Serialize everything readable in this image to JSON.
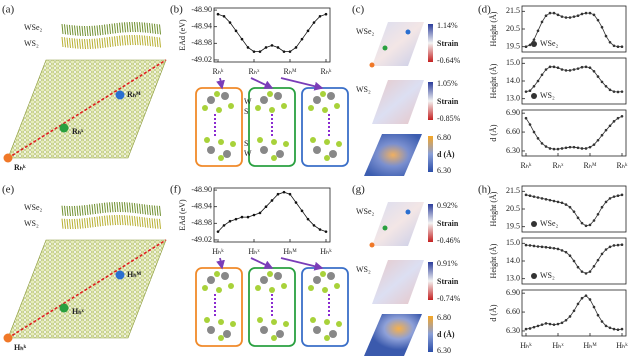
{
  "panels": {
    "labels": [
      "(a)",
      "(b)",
      "(c)",
      "(d)",
      "(e)",
      "(f)",
      "(g)",
      "(h)"
    ],
    "top": {
      "layers": [
        "WSe₂",
        "WS₂"
      ],
      "points": [
        "Rₕᴹ",
        "Rₕˣ",
        "Rₕᵏ"
      ],
      "stacking_atoms": [
        "W",
        "S",
        "S",
        "W"
      ],
      "maps": [
        {
          "layer": "WSe₂",
          "max": "1.14%",
          "quantity": "Strain",
          "min": "-0.64%"
        },
        {
          "layer": "WS₂",
          "max": "1.05%",
          "quantity": "Strain",
          "min": "-0.85%"
        },
        {
          "max": "6.80",
          "quantity": "d (Å)",
          "min": "6.30"
        }
      ]
    },
    "bottom": {
      "layers": [
        "WSe₂",
        "WS₂"
      ],
      "points": [
        "Hₕᴹ",
        "Hₕˣ",
        "Hₕᵏ"
      ],
      "maps": [
        {
          "layer": "WSe₂",
          "max": "0.92%",
          "quantity": "Strain",
          "min": "-0.46%"
        },
        {
          "layer": "WS₂",
          "max": "0.91%",
          "quantity": "Strain",
          "min": "-0.74%"
        },
        {
          "max": "6.80",
          "quantity": "d (Å)",
          "min": "6.30"
        }
      ]
    }
  },
  "chart_data": [
    {
      "type": "line",
      "ylabel": "EAd (eV)",
      "ylim": [
        -49.025,
        -48.895
      ],
      "yticks": [
        {
          "value": -48.9,
          "label": "-48.90"
        },
        {
          "value": -48.94,
          "label": "-48.94"
        },
        {
          "value": -48.98,
          "label": "-48.98"
        },
        {
          "value": -49.02,
          "label": "-49.02"
        }
      ],
      "categories": [
        "Rₕᵏ",
        null,
        null,
        null,
        null,
        null,
        "Rₕˣ",
        null,
        null,
        null,
        null,
        null,
        "Rₕᴹ",
        null,
        null,
        null,
        null,
        null,
        "Rₕᵏ"
      ],
      "series": [
        {
          "color": "#111111",
          "values": [
            -48.91,
            -48.915,
            -48.93,
            -48.95,
            -48.97,
            -48.99,
            -49.0,
            -49.0,
            -48.99,
            -48.985,
            -48.99,
            -49.0,
            -49.0,
            -48.99,
            -48.97,
            -48.95,
            -48.93,
            -48.915,
            -48.91
          ]
        }
      ]
    },
    {
      "type": "line",
      "ylabel": "Height (Å)",
      "ylim": [
        19.2,
        21.8
      ],
      "yticks": [
        19.5,
        20.5,
        21.5
      ],
      "series": [
        {
          "name": "WSe₂",
          "color": "#333333",
          "values": [
            19.5,
            19.6,
            19.9,
            20.4,
            20.9,
            21.25,
            21.4,
            21.4,
            21.3,
            21.2,
            21.15,
            21.15,
            21.2,
            21.25,
            21.35,
            21.4,
            21.4,
            21.3,
            21.0,
            20.6,
            20.1,
            19.75,
            19.55,
            19.5,
            19.5
          ]
        }
      ]
    },
    {
      "type": "line",
      "ylabel": "Height (Å)",
      "ylim": [
        12.7,
        15.3
      ],
      "yticks": [
        {
          "value": 13,
          "label": "13.0"
        },
        {
          "value": 14,
          "label": "14.0"
        },
        {
          "value": 15,
          "label": "15.0"
        }
      ],
      "series": [
        {
          "name": "WS₂",
          "color": "#333333",
          "values": [
            13.4,
            13.45,
            13.7,
            14.0,
            14.35,
            14.65,
            14.8,
            14.8,
            14.75,
            14.65,
            14.6,
            14.6,
            14.65,
            14.7,
            14.78,
            14.8,
            14.75,
            14.55,
            14.25,
            13.95,
            13.7,
            13.5,
            13.4,
            13.38,
            13.4
          ]
        }
      ]
    },
    {
      "type": "line",
      "ylabel": "d (Å)",
      "ylim": [
        6.22,
        6.95
      ],
      "yticks": [
        {
          "value": 6.3,
          "label": "6.30"
        },
        {
          "value": 6.6,
          "label": "6.60"
        },
        {
          "value": 6.9,
          "label": "6.90"
        }
      ],
      "categories": [
        "Rₕᵏ",
        null,
        null,
        null,
        null,
        null,
        null,
        null,
        "Rₕˣ",
        null,
        null,
        null,
        null,
        null,
        null,
        null,
        "Rₕᴹ",
        null,
        null,
        null,
        null,
        null,
        null,
        null,
        "Rₕᵏ"
      ],
      "series": [
        {
          "color": "#333333",
          "values": [
            6.82,
            6.72,
            6.6,
            6.5,
            6.42,
            6.37,
            6.34,
            6.33,
            6.33,
            6.34,
            6.35,
            6.36,
            6.36,
            6.35,
            6.34,
            6.34,
            6.36,
            6.4,
            6.47,
            6.55,
            6.63,
            6.7,
            6.77,
            6.82,
            6.85
          ]
        }
      ]
    },
    {
      "type": "line",
      "ylabel": "EAd (eV)",
      "ylim": [
        -49.025,
        -48.895
      ],
      "yticks": [
        {
          "value": -48.9,
          "label": "-48.90"
        },
        {
          "value": -48.94,
          "label": "-48.94"
        },
        {
          "value": -48.98,
          "label": "-48.98"
        },
        {
          "value": -49.02,
          "label": "-49.02"
        }
      ],
      "categories": [
        "Hₕᵏ",
        null,
        null,
        null,
        null,
        null,
        "Hₕˣ",
        null,
        null,
        null,
        null,
        null,
        "Hₕᴹ",
        null,
        null,
        null,
        null,
        null,
        "Hₕᵏ"
      ],
      "series": [
        {
          "color": "#111111",
          "values": [
            -49.0,
            -48.985,
            -48.975,
            -48.97,
            -48.965,
            -48.965,
            -48.96,
            -48.955,
            -48.94,
            -48.925,
            -48.91,
            -48.905,
            -48.91,
            -48.93,
            -48.95,
            -48.97,
            -48.985,
            -48.995,
            -49.0
          ]
        }
      ]
    },
    {
      "type": "line",
      "ylabel": "Height (Å)",
      "ylim": [
        19.2,
        21.8
      ],
      "yticks": [
        19.5,
        20.5,
        21.5
      ],
      "series": [
        {
          "name": "WSe₂",
          "color": "#333333",
          "values": [
            21.3,
            21.25,
            21.2,
            21.15,
            21.1,
            21.05,
            21.0,
            20.95,
            20.9,
            20.85,
            20.75,
            20.6,
            20.35,
            20.0,
            19.7,
            19.55,
            19.6,
            19.85,
            20.2,
            20.6,
            20.9,
            21.1,
            21.2,
            21.25,
            21.3
          ]
        }
      ]
    },
    {
      "type": "line",
      "ylabel": "Height (Å)",
      "ylim": [
        12.7,
        15.3
      ],
      "yticks": [
        {
          "value": 13,
          "label": "13.0"
        },
        {
          "value": 14,
          "label": "14.0"
        },
        {
          "value": 15,
          "label": "15.0"
        }
      ],
      "series": [
        {
          "name": "WS₂",
          "color": "#333333",
          "values": [
            14.9,
            14.88,
            14.85,
            14.82,
            14.8,
            14.78,
            14.75,
            14.72,
            14.68,
            14.6,
            14.5,
            14.3,
            14.0,
            13.65,
            13.4,
            13.3,
            13.4,
            13.7,
            14.05,
            14.4,
            14.65,
            14.8,
            14.88,
            14.9,
            14.92
          ]
        }
      ]
    },
    {
      "type": "line",
      "ylabel": "d (Å)",
      "ylim": [
        6.22,
        6.95
      ],
      "yticks": [
        {
          "value": 6.3,
          "label": "6.30"
        },
        {
          "value": 6.6,
          "label": "6.60"
        },
        {
          "value": 6.9,
          "label": "6.90"
        }
      ],
      "categories": [
        "Hₕᵏ",
        null,
        null,
        null,
        null,
        null,
        null,
        null,
        "Hₕˣ",
        null,
        null,
        null,
        null,
        null,
        null,
        null,
        "Hₕᴹ",
        null,
        null,
        null,
        null,
        null,
        null,
        null,
        "Hₕᵏ"
      ],
      "series": [
        {
          "color": "#333333",
          "values": [
            6.33,
            6.34,
            6.36,
            6.38,
            6.4,
            6.42,
            6.41,
            6.4,
            6.41,
            6.43,
            6.47,
            6.53,
            6.62,
            6.73,
            6.82,
            6.86,
            6.8,
            6.68,
            6.55,
            6.45,
            6.38,
            6.35,
            6.33,
            6.32,
            6.33
          ]
        }
      ]
    }
  ]
}
